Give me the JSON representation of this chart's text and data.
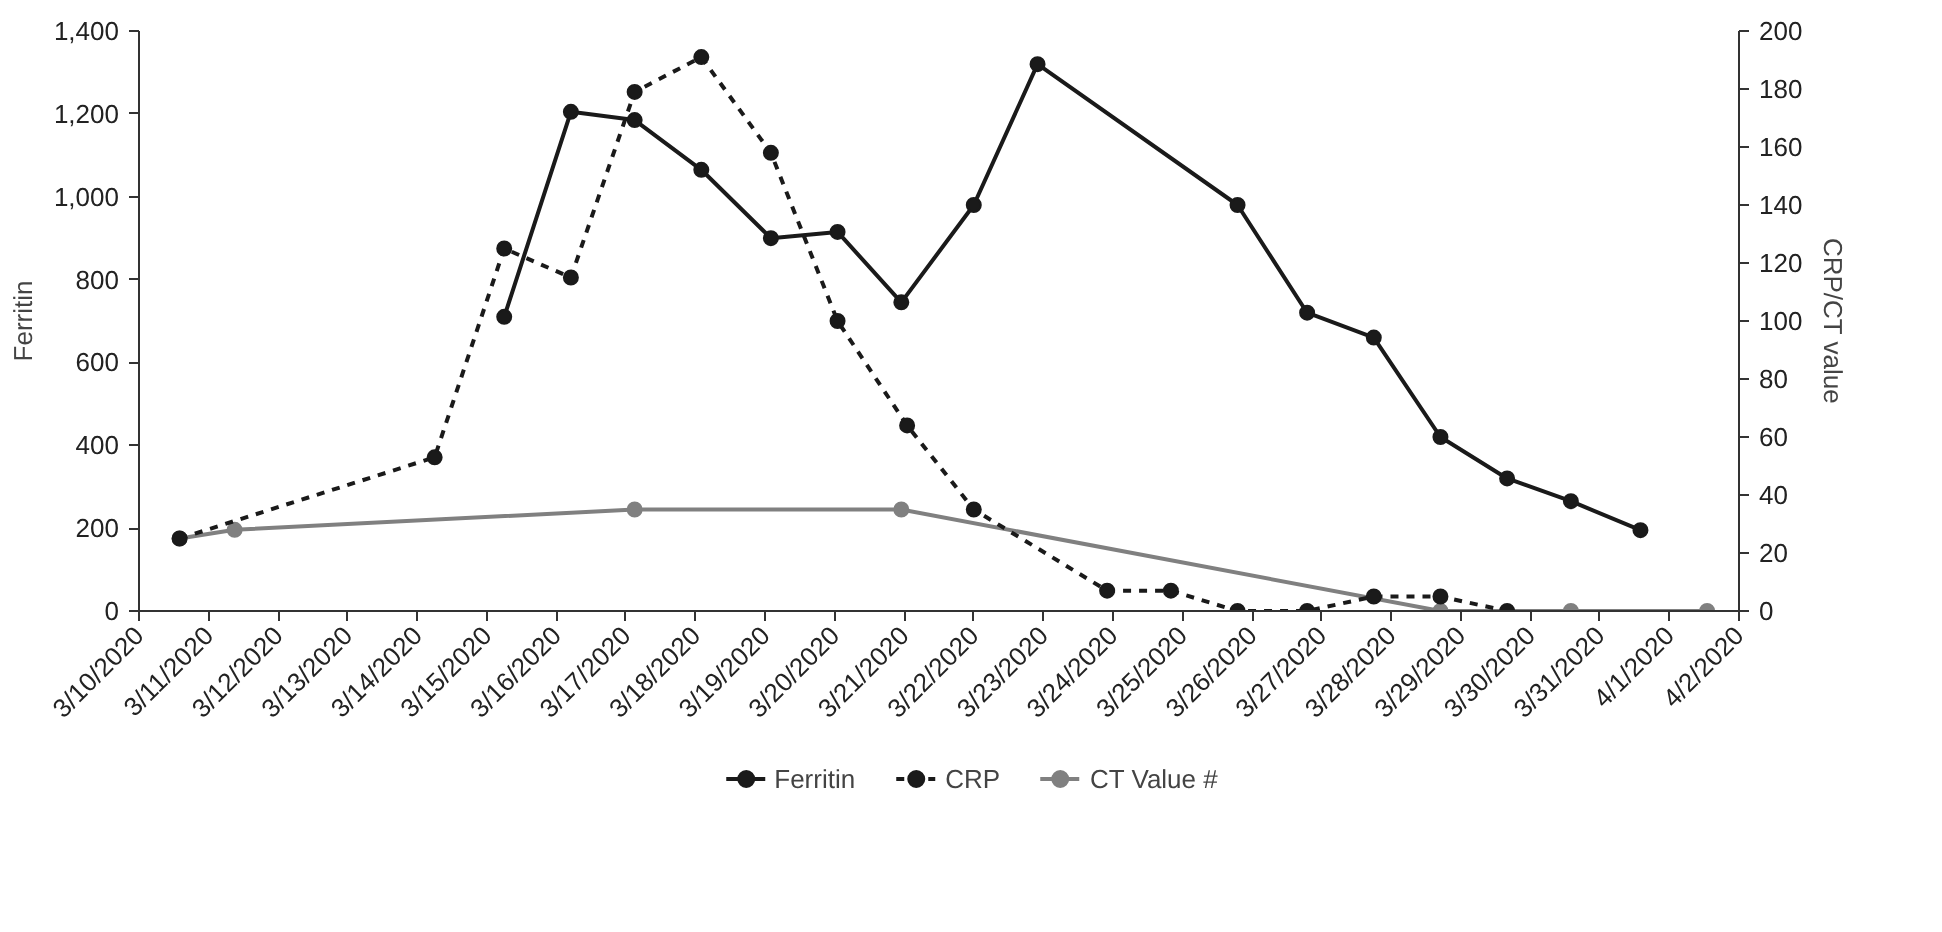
{
  "chart_data": {
    "type": "line",
    "ylabel": "Ferritin",
    "y2label": "CRP/CT value",
    "marker": "circle",
    "grid": false,
    "legend": "bottom",
    "xlim": [
      "2020-03-10",
      "2020-04-02"
    ],
    "xticks": [
      {
        "value": "2020-03-10",
        "label": "3/10/2020"
      },
      {
        "value": "2020-03-11",
        "label": "3/11/2020"
      },
      {
        "value": "2020-03-12",
        "label": "3/12/2020"
      },
      {
        "value": "2020-03-13",
        "label": "3/13/2020"
      },
      {
        "value": "2020-03-14",
        "label": "3/14/2020"
      },
      {
        "value": "2020-03-15",
        "label": "3/15/2020"
      },
      {
        "value": "2020-03-16",
        "label": "3/16/2020"
      },
      {
        "value": "2020-03-17",
        "label": "3/17/2020"
      },
      {
        "value": "2020-03-18",
        "label": "3/18/2020"
      },
      {
        "value": "2020-03-19",
        "label": "3/19/2020"
      },
      {
        "value": "2020-03-20",
        "label": "3/20/2020"
      },
      {
        "value": "2020-03-21",
        "label": "3/21/2020"
      },
      {
        "value": "2020-03-22",
        "label": "3/22/2020"
      },
      {
        "value": "2020-03-23",
        "label": "3/23/2020"
      },
      {
        "value": "2020-03-24",
        "label": "3/24/2020"
      },
      {
        "value": "2020-03-25",
        "label": "3/25/2020"
      },
      {
        "value": "2020-03-26",
        "label": "3/26/2020"
      },
      {
        "value": "2020-03-27",
        "label": "3/27/2020"
      },
      {
        "value": "2020-03-28",
        "label": "3/28/2020"
      },
      {
        "value": "2020-03-29",
        "label": "3/29/2020"
      },
      {
        "value": "2020-03-30",
        "label": "3/30/2020"
      },
      {
        "value": "2020-03-31",
        "label": "3/31/2020"
      },
      {
        "value": "2020-04-01",
        "label": "4/1/2020"
      },
      {
        "value": "2020-04-02",
        "label": "4/2/2020"
      }
    ],
    "ylim": [
      0,
      1400
    ],
    "yticks": [
      {
        "value": 0,
        "label": "0"
      },
      {
        "value": 200,
        "label": "200"
      },
      {
        "value": 400,
        "label": "400"
      },
      {
        "value": 600,
        "label": "600"
      },
      {
        "value": 800,
        "label": "800"
      },
      {
        "value": 1000,
        "label": "1,000"
      },
      {
        "value": 1200,
        "label": "1,200"
      },
      {
        "value": 1400,
        "label": "1,400"
      }
    ],
    "y2lim": [
      0,
      200
    ],
    "y2ticks": [
      0,
      20,
      40,
      60,
      80,
      100,
      120,
      140,
      160,
      180,
      200
    ],
    "series": [
      {
        "name": "Ferritin",
        "color": "#1a1a1a",
        "line_style": "solid",
        "x": [
          "2020-03-15T06:00",
          "2020-03-16T05:00",
          "2020-03-17T03:00",
          "2020-03-18T02:00",
          "2020-03-19T02:00",
          "2020-03-20T01:00",
          "2020-03-20T23:00",
          "2020-03-22T00:00",
          "2020-03-22T22:00",
          "2020-03-25T19:00",
          "2020-03-26T19:00",
          "2020-03-27T18:00",
          "2020-03-28T17:00",
          "2020-03-29T16:00",
          "2020-03-30T14:00",
          "2020-03-31T14:00"
        ],
        "values": [
          710,
          1205,
          1185,
          1065,
          900,
          915,
          745,
          980,
          1320,
          980,
          720,
          660,
          420,
          320,
          265,
          195
        ]
      },
      {
        "name": "CRP",
        "color": "#1a1a1a",
        "line_style": "dashed",
        "axis": "y2",
        "x": [
          "2020-03-10T14:00",
          "2020-03-14T06:00",
          "2020-03-15T06:00",
          "2020-03-16T05:00",
          "2020-03-17T03:00",
          "2020-03-18T02:00",
          "2020-03-19T02:00",
          "2020-03-20T01:00",
          "2020-03-21T01:00",
          "2020-03-22T00:00",
          "2020-03-23T22:00",
          "2020-03-24T20:00",
          "2020-03-25T19:00",
          "2020-03-26T19:00",
          "2020-03-27T18:00",
          "2020-03-28T17:00",
          "2020-03-29T16:00"
        ],
        "values": [
          25,
          53,
          125,
          115,
          179,
          191,
          158,
          100,
          64,
          35,
          7,
          7,
          0,
          0,
          5,
          5,
          0
        ]
      },
      {
        "name": "CT Value #",
        "color": "#808080",
        "line_style": "solid",
        "axis": "y2",
        "x": [
          "2020-03-10T14:00",
          "2020-03-11T09:00",
          "2020-03-17T03:00",
          "2020-03-20T23:00",
          "2020-03-28T17:00",
          "2020-03-30T14:00",
          "2020-04-01T13:00"
        ],
        "values": [
          25,
          28,
          35,
          35,
          0,
          0,
          0
        ]
      }
    ]
  }
}
